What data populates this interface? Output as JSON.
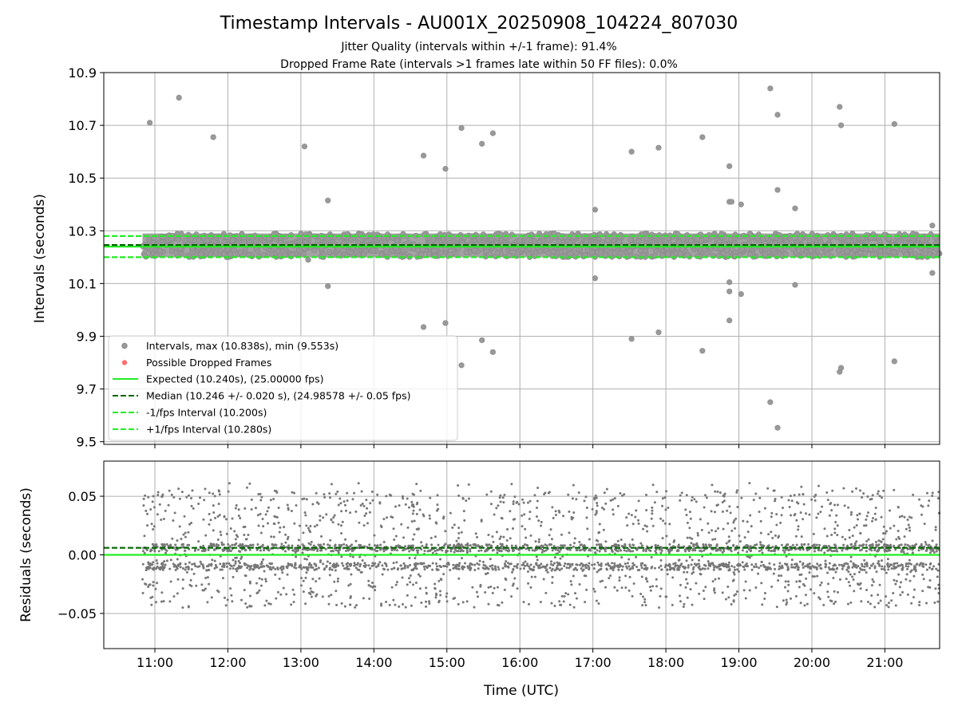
{
  "figure": {
    "title": "Timestamp Intervals - AU001X_20250908_104224_807030",
    "subtitle_lines": [
      "Jitter Quality (intervals within +/-1 frame): 91.4%",
      "Dropped Frame Rate (intervals >1 frames late within 50 FF files): 0.0%"
    ]
  },
  "colors": {
    "intervals": "#999999",
    "intervals_edge": "#888888",
    "dropped": "#ff5555",
    "expected": "#22ee22",
    "median": "#006600",
    "interval_bounds": "#22ee22",
    "residuals": "#777777",
    "grid": "#b0b0b0"
  },
  "chart_data": [
    {
      "type": "scatter",
      "panel": "top",
      "ylabel": "Intervals (seconds)",
      "xlabel": "",
      "x_unit": "hours UTC",
      "xlim": [
        10.3,
        21.75
      ],
      "ylim": [
        9.49,
        10.9
      ],
      "x_ticks": [
        11,
        12,
        13,
        14,
        15,
        16,
        17,
        18,
        19,
        20,
        21
      ],
      "x_tick_labels": [
        "11:00",
        "12:00",
        "13:00",
        "14:00",
        "15:00",
        "16:00",
        "17:00",
        "18:00",
        "19:00",
        "20:00",
        "21:00"
      ],
      "y_ticks": [
        9.5,
        9.7,
        9.9,
        10.1,
        10.3,
        10.5,
        10.7,
        10.9
      ],
      "y_tick_labels": [
        "9.5",
        "9.7",
        "9.9",
        "10.1",
        "10.3",
        "10.5",
        "10.7",
        "10.9"
      ],
      "grid": true,
      "legend_position": "lower-left",
      "series": [
        {
          "name": "Intervals, max (10.838s), min (9.553s)",
          "kind": "scatter",
          "dense_band": {
            "x_range": [
              10.83,
              21.75
            ],
            "y_range": [
              10.2,
              10.29
            ]
          },
          "outliers": [
            [
              10.93,
              10.71
            ],
            [
              11.33,
              10.805
            ],
            [
              11.8,
              10.655
            ],
            [
              13.05,
              10.62
            ],
            [
              13.1,
              10.19
            ],
            [
              13.37,
              10.415
            ],
            [
              13.37,
              10.09
            ],
            [
              14.68,
              10.585
            ],
            [
              14.68,
              9.935
            ],
            [
              14.98,
              10.535
            ],
            [
              14.98,
              9.95
            ],
            [
              15.2,
              10.69
            ],
            [
              15.2,
              9.79
            ],
            [
              15.48,
              10.63
            ],
            [
              15.48,
              9.885
            ],
            [
              15.63,
              10.67
            ],
            [
              15.63,
              9.84
            ],
            [
              17.03,
              10.38
            ],
            [
              17.03,
              10.12
            ],
            [
              17.53,
              10.6
            ],
            [
              17.53,
              9.89
            ],
            [
              17.9,
              10.615
            ],
            [
              17.9,
              9.915
            ],
            [
              18.5,
              10.655
            ],
            [
              18.5,
              9.845
            ],
            [
              18.87,
              10.545
            ],
            [
              18.87,
              10.41
            ],
            [
              18.9,
              10.41
            ],
            [
              18.87,
              10.105
            ],
            [
              18.87,
              10.07
            ],
            [
              18.87,
              9.96
            ],
            [
              19.03,
              10.4
            ],
            [
              19.03,
              10.06
            ],
            [
              19.43,
              10.84
            ],
            [
              19.43,
              9.65
            ],
            [
              19.53,
              10.74
            ],
            [
              19.53,
              10.455
            ],
            [
              19.53,
              9.553
            ],
            [
              19.77,
              10.385
            ],
            [
              19.77,
              10.095
            ],
            [
              20.38,
              10.77
            ],
            [
              20.4,
              10.7
            ],
            [
              20.38,
              9.765
            ],
            [
              20.4,
              9.78
            ],
            [
              21.13,
              10.705
            ],
            [
              21.13,
              9.805
            ],
            [
              21.65,
              10.32
            ],
            [
              21.65,
              10.14
            ]
          ]
        },
        {
          "name": "Possible Dropped Frames",
          "kind": "scatter",
          "points": []
        },
        {
          "name": "Expected (10.240s), (25.00000 fps)",
          "kind": "hline",
          "y": 10.24,
          "style": "solid"
        },
        {
          "name": "Median (10.246 +/- 0.020 s), (24.98578 +/- 0.05 fps)",
          "kind": "hline",
          "y": 10.246,
          "style": "dashed"
        },
        {
          "name": "-1/fps Interval (10.200s)",
          "kind": "hline",
          "y": 10.2,
          "style": "dashed"
        },
        {
          "name": "+1/fps Interval (10.280s)",
          "kind": "hline",
          "y": 10.28,
          "style": "dashed"
        }
      ]
    },
    {
      "type": "scatter",
      "panel": "bottom",
      "ylabel": "Residuals (seconds)",
      "xlabel": "Time (UTC)",
      "x_unit": "hours UTC",
      "xlim": [
        10.3,
        21.75
      ],
      "ylim": [
        -0.08,
        0.08
      ],
      "x_ticks": [
        11,
        12,
        13,
        14,
        15,
        16,
        17,
        18,
        19,
        20,
        21
      ],
      "x_tick_labels": [
        "11:00",
        "12:00",
        "13:00",
        "14:00",
        "15:00",
        "16:00",
        "17:00",
        "18:00",
        "19:00",
        "20:00",
        "21:00"
      ],
      "y_ticks": [
        -0.05,
        0.0,
        0.05
      ],
      "y_tick_labels": [
        "−0.05",
        "0.00",
        "0.05"
      ],
      "grid": true,
      "series": [
        {
          "kind": "scatter",
          "dense_band": {
            "x_range": [
              10.83,
              21.75
            ],
            "y_range": [
              -0.05,
              0.062
            ]
          }
        },
        {
          "kind": "hline",
          "y": 0.0,
          "style": "solid"
        },
        {
          "kind": "hline",
          "y": 0.006,
          "style": "dashed"
        }
      ]
    }
  ]
}
